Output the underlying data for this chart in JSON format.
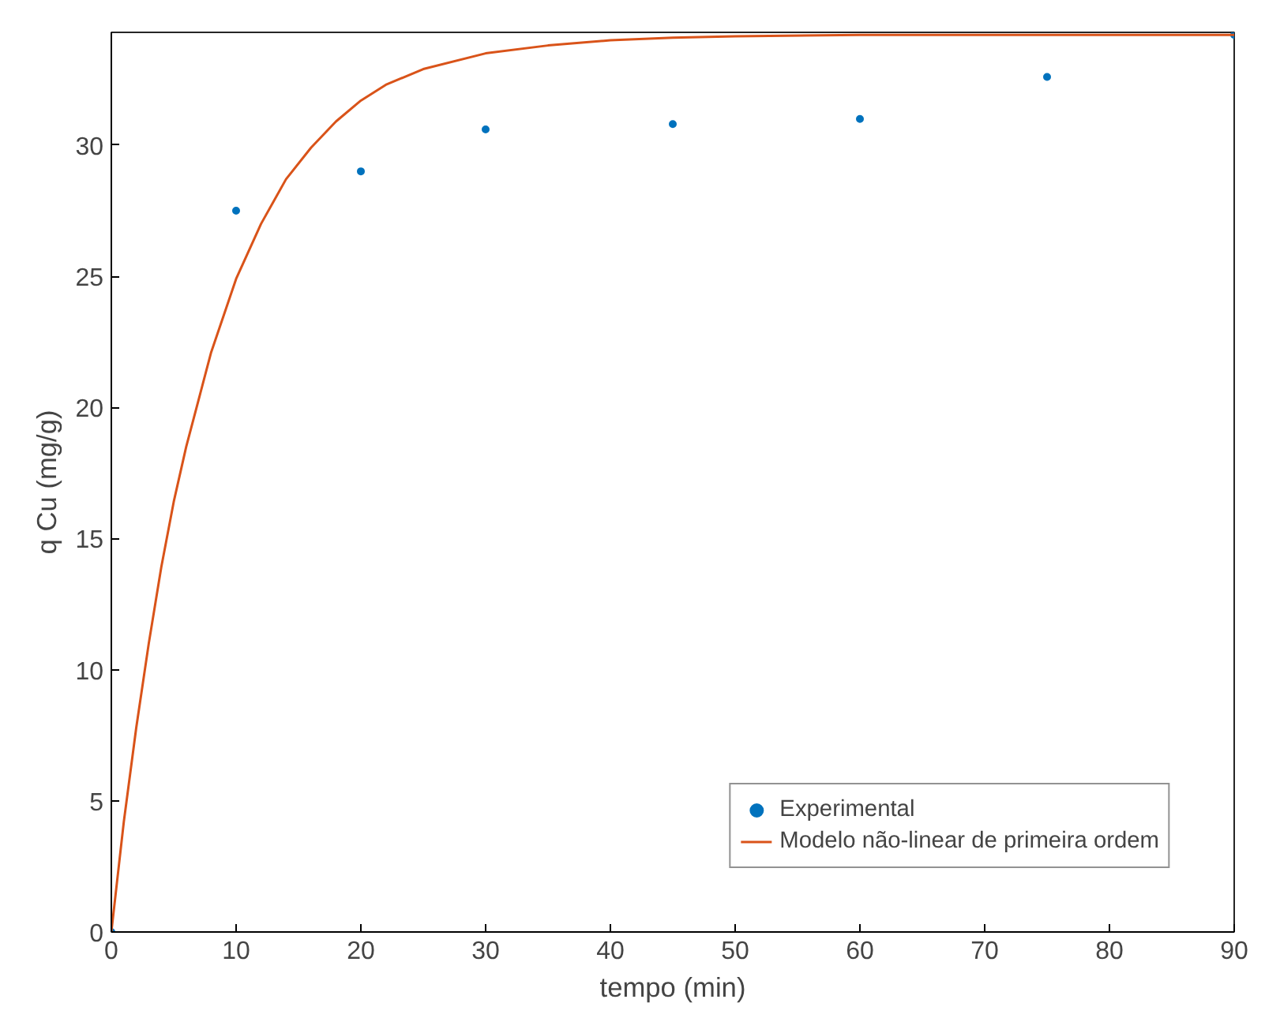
{
  "chart_data": {
    "type": "scatter",
    "xlabel": "tempo (min)",
    "ylabel": "q Cu (mg/g)",
    "xlim": [
      0,
      90
    ],
    "ylim": [
      0,
      34.3
    ],
    "xticks": [
      0,
      10,
      20,
      30,
      40,
      50,
      60,
      70,
      80,
      90
    ],
    "yticks": [
      0,
      5,
      10,
      15,
      20,
      25,
      30
    ],
    "grid": false,
    "legend": "bottom right",
    "series": [
      {
        "name": "Experimental",
        "marker": "circle",
        "color": "#0072bd",
        "x": [
          0,
          10,
          20,
          30,
          45,
          60,
          75,
          90
        ],
        "values": [
          0,
          27.5,
          29.0,
          30.6,
          30.8,
          31.0,
          32.6,
          34.2
        ]
      },
      {
        "name": "Modelo não-linear de primeira ordem",
        "type": "line",
        "line_style": "solid",
        "color": "#d95319",
        "x": [
          0,
          1,
          2,
          3,
          4,
          5,
          6,
          8,
          10,
          12,
          14,
          16,
          18,
          20,
          22,
          25,
          30,
          35,
          40,
          45,
          50,
          60,
          70,
          80,
          90
        ],
        "values": [
          0,
          4.2,
          7.8,
          11.0,
          13.9,
          16.4,
          18.5,
          22.1,
          24.9,
          27.0,
          28.7,
          29.9,
          30.9,
          31.7,
          32.3,
          32.9,
          33.5,
          33.8,
          34.0,
          34.1,
          34.15,
          34.2,
          34.2,
          34.2,
          34.2
        ]
      }
    ]
  }
}
